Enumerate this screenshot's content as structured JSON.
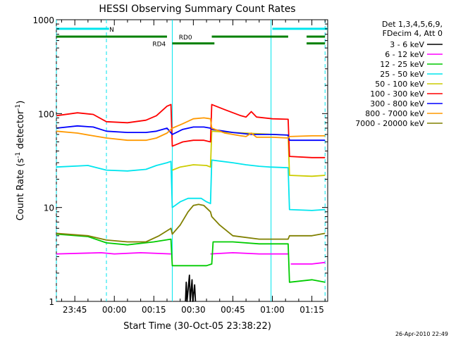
{
  "chart_data": {
    "type": "line",
    "title": "HESSI Observing Summary Count Rates",
    "xlabel": "Start Time (30-Oct-05 23:38:22)",
    "ylabel_main": "Count Rate (s",
    "ylabel_sup1": "-1",
    "ylabel_mid": " detector",
    "ylabel_sup2": "-1",
    "ylabel_end": ")",
    "footer": "26-Apr-2010 22:49",
    "yscale": "log",
    "ylim": [
      1,
      1000
    ],
    "xlim_minutes": [
      -22,
      81
    ],
    "grid": false,
    "legend_position": "top-right",
    "legend_header": [
      "Det 1,3,4,5,6,9,",
      "FDecim 4, Att 0"
    ],
    "x_ticks": [
      {
        "label": "23:45",
        "minute": -15
      },
      {
        "label": "00:00",
        "minute": 0
      },
      {
        "label": "00:15",
        "minute": 15
      },
      {
        "label": "00:30",
        "minute": 30
      },
      {
        "label": "00:45",
        "minute": 45
      },
      {
        "label": "01:00",
        "minute": 60
      },
      {
        "label": "01:15",
        "minute": 75
      }
    ],
    "y_ticks": [
      {
        "label": "1",
        "value": 1
      },
      {
        "label": "10",
        "value": 10
      },
      {
        "label": "100",
        "value": 100
      },
      {
        "label": "1000",
        "value": 1000
      }
    ],
    "flag_bars": [
      {
        "name": "N",
        "color": "#00e5ee",
        "value": 800,
        "segments": [
          [
            -22,
            -2
          ],
          [
            60,
            81
          ]
        ],
        "label_minute": -1
      },
      {
        "name": "RD0",
        "color": "#008000",
        "value": 660,
        "segments": [
          [
            -22,
            20
          ],
          [
            37,
            66
          ],
          [
            73,
            80
          ]
        ],
        "label_minute": 27
      },
      {
        "name": "RD4",
        "color": "#008000",
        "value": 560,
        "segments": [
          [
            22,
            38
          ],
          [
            73,
            80
          ]
        ],
        "label_minute": 17
      }
    ],
    "vertical_lines": [
      {
        "minute": -22,
        "color": "#00e5ee",
        "style": "dashed"
      },
      {
        "minute": -3,
        "color": "#00e5ee",
        "style": "dashed"
      },
      {
        "minute": 22,
        "color": "#00e5ee",
        "style": "solid"
      },
      {
        "minute": 59.5,
        "color": "#00e5ee",
        "style": "solid"
      },
      {
        "minute": 80,
        "color": "#00e5ee",
        "style": "dashed"
      }
    ],
    "series": [
      {
        "name": "3 - 6 keV",
        "color": "#000000",
        "points": [
          [
            27,
            1
          ],
          [
            27.3,
            1.6
          ],
          [
            27.6,
            1
          ],
          [
            28.5,
            1.9
          ],
          [
            28.8,
            1
          ],
          [
            29.5,
            1.7
          ],
          [
            29.8,
            1
          ],
          [
            30.5,
            1.5
          ],
          [
            30.8,
            1
          ]
        ]
      },
      {
        "name": "6 - 12 keV",
        "color": "#ff00ff",
        "points": [
          [
            -22,
            3.2
          ],
          [
            -5,
            3.3
          ],
          [
            0,
            3.2
          ],
          [
            10,
            3.3
          ],
          [
            21.5,
            3.2
          ],
          [
            22,
            null
          ],
          [
            35,
            null
          ],
          [
            36.5,
            3.2
          ],
          [
            45,
            3.3
          ],
          [
            55,
            3.2
          ],
          [
            66,
            3.2
          ],
          [
            66.5,
            null
          ],
          [
            67,
            2.5
          ],
          [
            75,
            2.5
          ],
          [
            80,
            2.6
          ]
        ]
      },
      {
        "name": "12 - 25 keV",
        "color": "#00cc00",
        "points": [
          [
            -22,
            5.2
          ],
          [
            -10,
            4.9
          ],
          [
            -3,
            4.2
          ],
          [
            5,
            4
          ],
          [
            15,
            4.3
          ],
          [
            21.5,
            4.6
          ],
          [
            22,
            2.4
          ],
          [
            35,
            2.4
          ],
          [
            37,
            2.5
          ],
          [
            37.5,
            4.3
          ],
          [
            45,
            4.3
          ],
          [
            55,
            4.1
          ],
          [
            66,
            4.1
          ],
          [
            66.5,
            1.6
          ],
          [
            75,
            1.7
          ],
          [
            80,
            1.6
          ]
        ]
      },
      {
        "name": "25 - 50 keV",
        "color": "#00e5ee",
        "points": [
          [
            -22,
            27
          ],
          [
            -10,
            28
          ],
          [
            -3,
            25
          ],
          [
            5,
            24.5
          ],
          [
            12,
            25.5
          ],
          [
            16,
            28
          ],
          [
            20,
            30
          ],
          [
            21.5,
            31
          ],
          [
            22,
            10
          ],
          [
            25,
            11.5
          ],
          [
            28,
            12.5
          ],
          [
            33,
            12.5
          ],
          [
            35,
            11.5
          ],
          [
            36.5,
            11
          ],
          [
            37,
            32
          ],
          [
            45,
            30
          ],
          [
            50,
            28.5
          ],
          [
            55,
            27.5
          ],
          [
            59,
            27
          ],
          [
            66,
            26.5
          ],
          [
            66.5,
            9.5
          ],
          [
            75,
            9.3
          ],
          [
            80,
            9.5
          ]
        ]
      },
      {
        "name": "50 - 100 keV",
        "color": "#cccc00",
        "points": [
          [
            22,
            25
          ],
          [
            25,
            27
          ],
          [
            30,
            28.5
          ],
          [
            35,
            28
          ],
          [
            36.5,
            27
          ],
          [
            37,
            65
          ],
          [
            45,
            63
          ],
          [
            60,
            60
          ],
          [
            66,
            59
          ],
          [
            66.5,
            22
          ],
          [
            75,
            21.5
          ],
          [
            80,
            22
          ]
        ]
      },
      {
        "name": "100 - 300 keV",
        "color": "#ff0000",
        "points": [
          [
            -22,
            95
          ],
          [
            -14,
            102
          ],
          [
            -8,
            98
          ],
          [
            -3,
            82
          ],
          [
            5,
            80
          ],
          [
            12,
            85
          ],
          [
            16,
            95
          ],
          [
            20,
            120
          ],
          [
            21.5,
            125
          ],
          [
            22,
            45
          ],
          [
            26,
            50
          ],
          [
            30,
            52
          ],
          [
            34,
            52
          ],
          [
            36.5,
            50
          ],
          [
            37,
            125
          ],
          [
            42,
            110
          ],
          [
            48,
            95
          ],
          [
            50,
            92
          ],
          [
            52,
            105
          ],
          [
            54,
            92
          ],
          [
            60,
            88
          ],
          [
            66,
            87
          ],
          [
            66.5,
            35
          ],
          [
            75,
            34
          ],
          [
            80,
            34
          ]
        ]
      },
      {
        "name": "300 - 800 keV",
        "color": "#0000ff",
        "points": [
          [
            -22,
            70
          ],
          [
            -14,
            74
          ],
          [
            -8,
            72
          ],
          [
            -3,
            65
          ],
          [
            5,
            63
          ],
          [
            12,
            63
          ],
          [
            16,
            65
          ],
          [
            20,
            70
          ],
          [
            22,
            60
          ],
          [
            26,
            68
          ],
          [
            30,
            72
          ],
          [
            34,
            72
          ],
          [
            36.5,
            70
          ],
          [
            37,
            68
          ],
          [
            45,
            63
          ],
          [
            52,
            60
          ],
          [
            60,
            60
          ],
          [
            66,
            59
          ],
          [
            66.5,
            52
          ],
          [
            75,
            52
          ],
          [
            80,
            52
          ]
        ]
      },
      {
        "name": "800 - 7000 keV",
        "color": "#ff9900",
        "points": [
          [
            -22,
            65
          ],
          [
            -14,
            62
          ],
          [
            -8,
            58
          ],
          [
            -3,
            55
          ],
          [
            5,
            52
          ],
          [
            12,
            52
          ],
          [
            16,
            55
          ],
          [
            20,
            62
          ],
          [
            22,
            70
          ],
          [
            26,
            78
          ],
          [
            30,
            88
          ],
          [
            34,
            90
          ],
          [
            36.5,
            88
          ],
          [
            37,
            70
          ],
          [
            42,
            62
          ],
          [
            48,
            58
          ],
          [
            50,
            57
          ],
          [
            52,
            62
          ],
          [
            54,
            56
          ],
          [
            60,
            56
          ],
          [
            66,
            55
          ],
          [
            66.5,
            57
          ],
          [
            75,
            58
          ],
          [
            80,
            58
          ]
        ]
      },
      {
        "name": "7000 - 20000 keV",
        "color": "#808000",
        "points": [
          [
            -22,
            5.3
          ],
          [
            -10,
            5
          ],
          [
            -3,
            4.5
          ],
          [
            5,
            4.3
          ],
          [
            12,
            4.3
          ],
          [
            17,
            5
          ],
          [
            21.5,
            6
          ],
          [
            22,
            5.2
          ],
          [
            25,
            6.5
          ],
          [
            28,
            9
          ],
          [
            30,
            10.5
          ],
          [
            32,
            10.8
          ],
          [
            34,
            10.5
          ],
          [
            36.5,
            9
          ],
          [
            37,
            8
          ],
          [
            40,
            6.5
          ],
          [
            45,
            5
          ],
          [
            55,
            4.6
          ],
          [
            66,
            4.6
          ],
          [
            66.5,
            5
          ],
          [
            75,
            5
          ],
          [
            80,
            5.3
          ]
        ]
      }
    ]
  }
}
